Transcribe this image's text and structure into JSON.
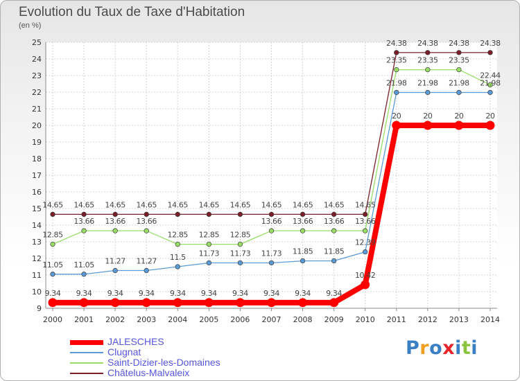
{
  "chart_data": {
    "type": "line",
    "title": "Evolution du Taux de Taxe d'Habitation",
    "ylabel": "(en %)",
    "xlabel": "",
    "ylim": [
      9,
      25
    ],
    "yticks": [
      9,
      10,
      11,
      12,
      13,
      14,
      15,
      16,
      17,
      18,
      19,
      20,
      21,
      22,
      23,
      24,
      25
    ],
    "categories": [
      "2000",
      "2001",
      "2002",
      "2003",
      "2004",
      "2005",
      "2006",
      "2007",
      "2008",
      "2009",
      "2010",
      "2011",
      "2012",
      "2013",
      "2014"
    ],
    "grid": true,
    "legend_position": "bottom-left",
    "series": [
      {
        "name": "JALESCHES",
        "color": "#ff0000",
        "values": [
          9.34,
          9.34,
          9.34,
          9.34,
          9.34,
          9.34,
          9.34,
          9.34,
          9.34,
          9.34,
          10.42,
          20,
          20,
          20,
          20
        ],
        "labels": [
          "9.34",
          "9.34",
          "9.34",
          "9.34",
          "9.34",
          "9.34",
          "9.34",
          "9.34",
          "9.34",
          "9.34",
          "10.42",
          "20",
          "20",
          "20",
          "20"
        ]
      },
      {
        "name": "Clugnat",
        "color": "#5b9bd5",
        "values": [
          11.05,
          11.05,
          11.27,
          11.27,
          11.5,
          11.73,
          11.73,
          11.73,
          11.85,
          11.85,
          12.39,
          21.98,
          21.98,
          21.98,
          21.98
        ],
        "labels": [
          "11.05",
          "11.05",
          "11.27",
          "11.27",
          "11.5",
          "11.73",
          "11.73",
          "11.73",
          "11.85",
          "11.85",
          "12.39",
          "21.98",
          "21.98",
          "21.98",
          "21.98"
        ]
      },
      {
        "name": "Saint-Dizier-les-Domaines",
        "color": "#99dd66",
        "values": [
          12.85,
          13.66,
          13.66,
          13.66,
          12.85,
          12.85,
          12.85,
          13.66,
          13.66,
          13.66,
          13.66,
          23.35,
          23.35,
          23.35,
          22.44
        ],
        "labels": [
          "12.85",
          "13.66",
          "13.66",
          "13.66",
          "12.85",
          "12.85",
          "12.85",
          "13.66",
          "13.66",
          "13.66",
          "13.66",
          "23.35",
          "23.35",
          "23.35",
          "22.44"
        ]
      },
      {
        "name": "Châtelus-Malvaleix",
        "color": "#7a1f2a",
        "values": [
          14.65,
          14.65,
          14.65,
          14.65,
          14.65,
          14.65,
          14.65,
          14.65,
          14.65,
          14.65,
          14.65,
          24.38,
          24.38,
          24.38,
          24.38
        ],
        "labels": [
          "14.65",
          "14.65",
          "14.65",
          "14.65",
          "14.65",
          "14.65",
          "14.65",
          "14.65",
          "14.65",
          "14.65",
          "14.65",
          "24.38",
          "24.38",
          "24.38",
          "24.38"
        ]
      }
    ]
  },
  "branding": {
    "logo_letters": [
      "P",
      "r",
      "o",
      "x",
      "i",
      "t",
      "i"
    ],
    "logo_colors": [
      "#3a7fc4",
      "#f0a020",
      "#3a7fc4",
      "#e8232a",
      "#3a7fc4",
      "#8ac43f",
      "#3a7fc4"
    ]
  }
}
